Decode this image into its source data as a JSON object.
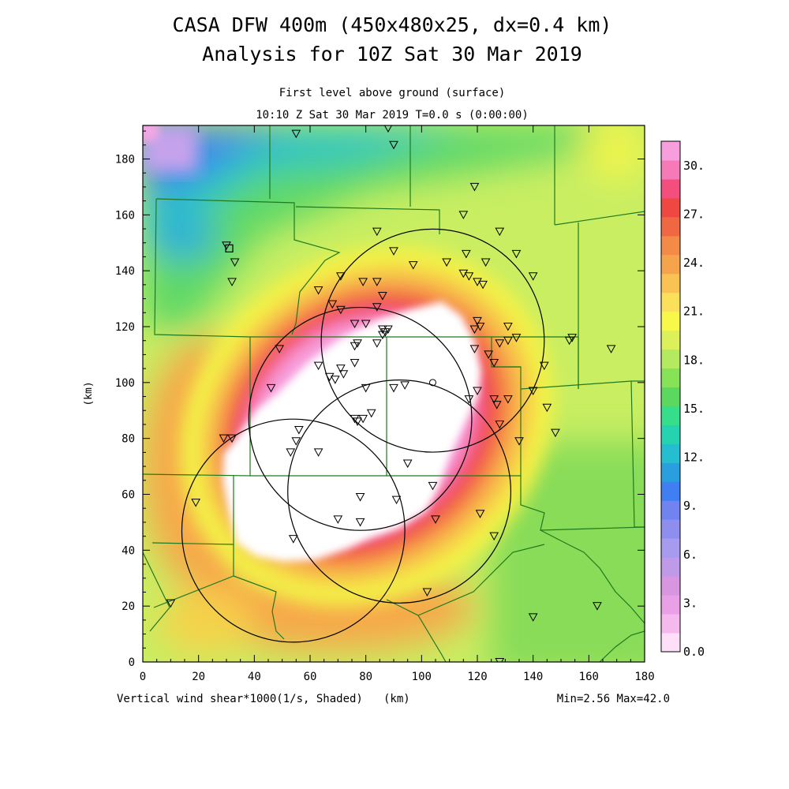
{
  "chart_data": {
    "type": "heatmap",
    "title_line1": "CASA DFW 400m (450x480x25, dx=0.4 km)",
    "title_line2": "Analysis for 10Z Sat 30 Mar 2019",
    "subtitle_line1": "First level above ground (surface)",
    "subtitle_line2": "10:10 Z Sat 30 Mar 2019   T=0.0 s (0:00:00)",
    "xlabel": "(km)",
    "ylabel": "(km)",
    "field_label": "Vertical wind shear*1000(1/s, Shaded)",
    "stats": "Min=2.56 Max=42.0",
    "xlim": [
      0,
      180
    ],
    "ylim": [
      0,
      192
    ],
    "xticks": [
      "0",
      "20",
      "40",
      "60",
      "80",
      "100",
      "120",
      "140",
      "160",
      "180"
    ],
    "yticks": [
      "0",
      "20",
      "40",
      "60",
      "80",
      "100",
      "120",
      "140",
      "160",
      "180"
    ],
    "colorbar": {
      "min": 0,
      "max": 31.5,
      "step": 1.5,
      "labels": [
        "0.0",
        "3.",
        "6.",
        "9.",
        "12.",
        "15.",
        "18.",
        "21.",
        "24.",
        "27.",
        "30."
      ],
      "colors": [
        "#fde0f8",
        "#f5b9ee",
        "#e9a0e6",
        "#d896e0",
        "#bf9ae8",
        "#a79bef",
        "#8e8eef",
        "#7083f0",
        "#3f7ef3",
        "#2a9fe0",
        "#25bdd0",
        "#25d3b0",
        "#35de8a",
        "#5bd95f",
        "#86e256",
        "#b3ea5f",
        "#dcf05a",
        "#f8f84a",
        "#fbe05c",
        "#f9c252",
        "#f6a44c",
        "#f48a48",
        "#f06842",
        "#ef4742",
        "#f44e7e",
        "#f77ab8",
        "#f99edd"
      ]
    },
    "radar_circles": [
      {
        "center": [
          54,
          47
        ],
        "radius": 40
      },
      {
        "center": [
          78,
          87
        ],
        "radius": 40
      },
      {
        "center": [
          104,
          115
        ],
        "radius": 40
      },
      {
        "center": [
          92,
          61
        ],
        "radius": 40
      }
    ],
    "stations": [
      [
        55,
        189
      ],
      [
        88,
        191
      ],
      [
        90,
        185
      ],
      [
        119,
        170
      ],
      [
        115,
        160
      ],
      [
        128,
        154
      ],
      [
        84,
        154
      ],
      [
        30,
        149
      ],
      [
        33,
        143
      ],
      [
        90,
        147
      ],
      [
        97,
        142
      ],
      [
        109,
        143
      ],
      [
        116,
        146
      ],
      [
        123,
        143
      ],
      [
        134,
        146
      ],
      [
        140,
        138
      ],
      [
        32,
        136
      ],
      [
        63,
        133
      ],
      [
        71,
        138
      ],
      [
        79,
        136
      ],
      [
        84,
        136
      ],
      [
        86,
        131
      ],
      [
        115,
        139
      ],
      [
        117,
        138
      ],
      [
        120,
        136
      ],
      [
        122,
        135
      ],
      [
        68,
        128
      ],
      [
        71,
        126
      ],
      [
        84,
        127
      ],
      [
        76,
        121
      ],
      [
        80,
        121
      ],
      [
        86,
        119
      ],
      [
        87,
        118
      ],
      [
        88,
        119
      ],
      [
        49,
        112
      ],
      [
        76,
        113
      ],
      [
        77,
        114
      ],
      [
        84,
        114
      ],
      [
        86,
        117
      ],
      [
        120,
        122
      ],
      [
        119,
        119
      ],
      [
        121,
        120
      ],
      [
        131,
        120
      ],
      [
        134,
        116
      ],
      [
        131,
        115
      ],
      [
        128,
        114
      ],
      [
        124,
        110
      ],
      [
        126,
        107
      ],
      [
        119,
        112
      ],
      [
        144,
        106
      ],
      [
        153,
        115
      ],
      [
        154,
        116
      ],
      [
        168,
        112
      ],
      [
        63,
        106
      ],
      [
        76,
        107
      ],
      [
        71,
        105
      ],
      [
        72,
        103
      ],
      [
        69,
        101
      ],
      [
        67,
        102
      ],
      [
        46,
        98
      ],
      [
        80,
        98
      ],
      [
        90,
        98
      ],
      [
        94,
        99
      ],
      [
        120,
        97
      ],
      [
        117,
        94
      ],
      [
        126,
        94
      ],
      [
        127,
        92
      ],
      [
        131,
        94
      ],
      [
        140,
        97
      ],
      [
        145,
        91
      ],
      [
        76,
        87
      ],
      [
        77,
        86
      ],
      [
        79,
        87
      ],
      [
        82,
        89
      ],
      [
        128,
        85
      ],
      [
        148,
        82
      ],
      [
        29,
        80
      ],
      [
        32,
        80
      ],
      [
        56,
        83
      ],
      [
        55,
        79
      ],
      [
        53,
        75
      ],
      [
        63,
        75
      ],
      [
        135,
        79
      ],
      [
        95,
        71
      ],
      [
        104,
        63
      ],
      [
        19,
        57
      ],
      [
        78,
        59
      ],
      [
        91,
        58
      ],
      [
        121,
        53
      ],
      [
        105,
        51
      ],
      [
        70,
        51
      ],
      [
        78,
        50
      ],
      [
        54,
        44
      ],
      [
        126,
        45
      ],
      [
        102,
        25
      ],
      [
        10,
        21
      ],
      [
        140,
        16
      ],
      [
        163,
        20
      ],
      [
        128,
        0
      ]
    ],
    "square_marker": [
      31,
      148
    ],
    "circle_marker": [
      104,
      100
    ]
  }
}
